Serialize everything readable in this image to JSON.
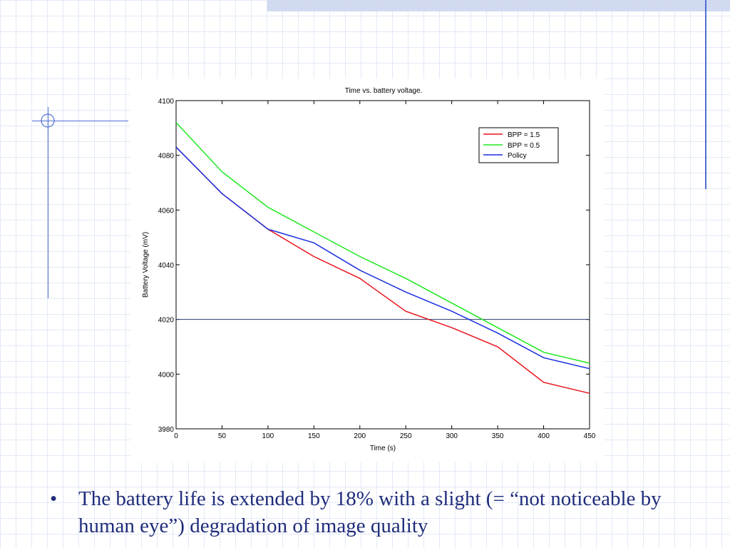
{
  "slide": {
    "bullet_marker": "•",
    "bullet_text": "The battery life is extended by 18% with a slight (= “not noticeable by human eye”) degradation of image quality"
  },
  "colors": {
    "text": "#1f2c7a",
    "decoration": "#4f6fd0",
    "grid": "#e3e9f6"
  },
  "chart_data": {
    "type": "line",
    "title": "Time vs. battery voltage.",
    "xlabel": "Time (s)",
    "ylabel": "Battery Voltage (mV)",
    "xlim": [
      0,
      450
    ],
    "ylim": [
      3980,
      4100
    ],
    "xticks": [
      0,
      50,
      100,
      150,
      200,
      250,
      300,
      350,
      400,
      450
    ],
    "yticks": [
      3980,
      4000,
      4020,
      4040,
      4060,
      4080,
      4100
    ],
    "xtick_labels": [
      "0",
      "50",
      "100",
      "150",
      "200",
      "250",
      "300",
      "350",
      "400",
      "450"
    ],
    "ytick_labels": [
      "3980",
      "4000",
      "4020",
      "4040",
      "4060",
      "4080",
      "4100"
    ],
    "reference_line": 4020,
    "legend_position": "top-right",
    "series": [
      {
        "name": "BPP = 1.5",
        "color": "#e8141c",
        "x": [
          0,
          50,
          100,
          150,
          200,
          250,
          300,
          350,
          400,
          450
        ],
        "y": [
          4083,
          4066,
          4053,
          4043,
          4035,
          4023,
          4017,
          4010,
          3997,
          3993
        ]
      },
      {
        "name": "BPP = 0.5",
        "color": "#1ee81e",
        "x": [
          0,
          50,
          100,
          150,
          200,
          250,
          300,
          350,
          400,
          450
        ],
        "y": [
          4092,
          4074,
          4061,
          4052,
          4043,
          4035,
          4026,
          4017,
          4008,
          4004
        ]
      },
      {
        "name": "Policy",
        "color": "#1a2ee0",
        "x": [
          0,
          50,
          100,
          150,
          200,
          250,
          300,
          350,
          400,
          450
        ],
        "y": [
          4083,
          4066,
          4053,
          4048,
          4038,
          4030,
          4023,
          4015,
          4006,
          4002
        ]
      }
    ]
  }
}
